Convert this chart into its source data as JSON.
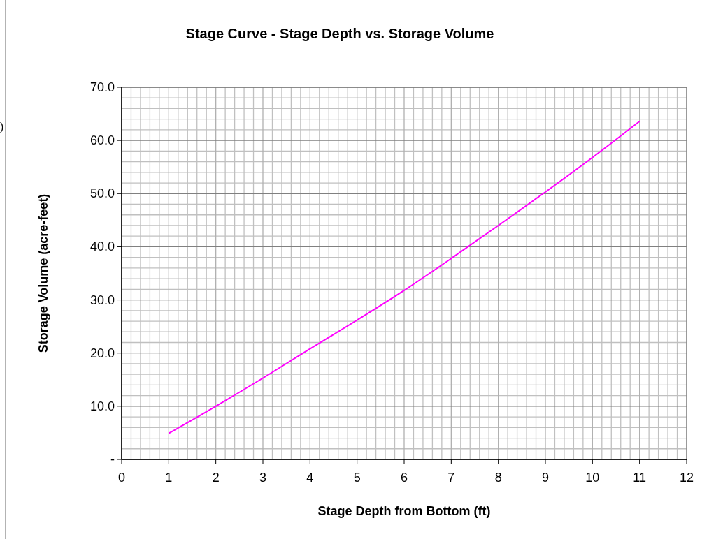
{
  "chart_data": {
    "type": "line",
    "title": "Stage Curve - Stage Depth vs. Storage Volume",
    "xlabel": "Stage Depth from Bottom (ft)",
    "ylabel": "Storage Volume (acre-feet)",
    "annotations": [
      ")"
    ],
    "x": [
      1,
      2,
      3,
      4,
      5,
      6,
      7,
      8,
      9,
      10,
      11
    ],
    "series": [
      {
        "color": "#ff00ff",
        "values": [
          4.9,
          10.0,
          15.3,
          20.8,
          26.2,
          31.8,
          37.8,
          44.0,
          50.3,
          56.8,
          63.6
        ]
      }
    ],
    "xlim": [
      0,
      12
    ],
    "xticks": [
      0,
      1,
      2,
      3,
      4,
      5,
      6,
      7,
      8,
      9,
      10,
      11,
      12
    ],
    "ylim": [
      0,
      70
    ],
    "yticks": [
      {
        "value": 0,
        "label": "-"
      },
      {
        "value": 10,
        "label": "10.0"
      },
      {
        "value": 20,
        "label": "20.0"
      },
      {
        "value": 30,
        "label": "30.0"
      },
      {
        "value": 40,
        "label": "40.0"
      },
      {
        "value": 50,
        "label": "50.0"
      },
      {
        "value": 60,
        "label": "60.0"
      },
      {
        "value": 70,
        "label": "70.0"
      }
    ],
    "grid": true,
    "marker": "none",
    "line_style": "solid"
  }
}
